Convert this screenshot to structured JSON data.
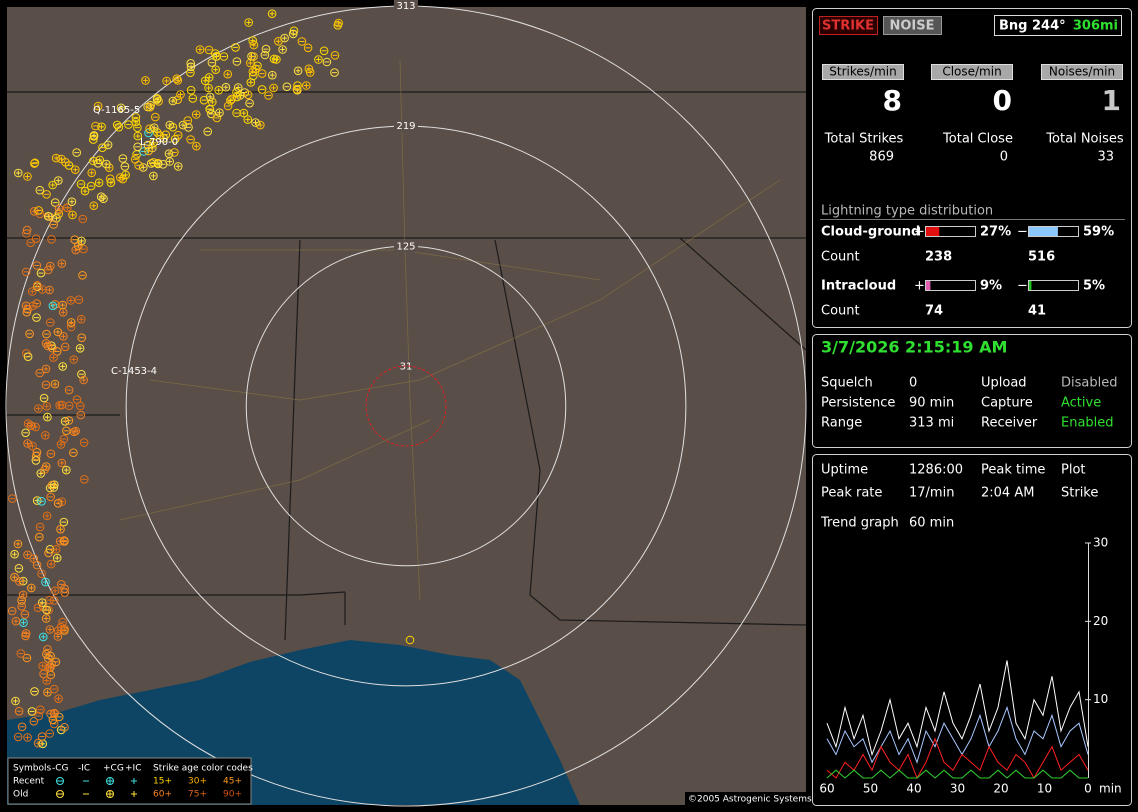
{
  "header": {
    "strike_button": "STRIKE",
    "noise_button": "NOISE",
    "bearing": "Bng 244°",
    "distance": "306mi"
  },
  "rates": [
    {
      "label": "Strikes/min",
      "value": "8"
    },
    {
      "label": "Close/min",
      "value": "0"
    },
    {
      "label": "Noises/min",
      "value": "1"
    }
  ],
  "totals": [
    {
      "label": "Total Strikes",
      "value": "869"
    },
    {
      "label": "Total Close",
      "value": "0"
    },
    {
      "label": "Total Noises",
      "value": "33"
    }
  ],
  "distribution": {
    "title": "Lightning type distribution",
    "rows": [
      {
        "label": "Cloud-ground",
        "plus_sign": "+",
        "plus": {
          "value": 27,
          "label": "27%"
        },
        "minus_sign": "−",
        "minus": {
          "value": 59,
          "label": "59%"
        },
        "count_label": "Count",
        "plus_count": "238",
        "minus_count": "516"
      },
      {
        "label": "Intracloud",
        "plus_sign": "+",
        "plus": {
          "value": 9,
          "label": "9%"
        },
        "minus_sign": "−",
        "minus": {
          "value": 5,
          "label": "5%"
        },
        "count_label": "Count",
        "plus_count": "74",
        "minus_count": "41"
      }
    ]
  },
  "status": {
    "datetime": "3/7/2026 2:15:19 AM",
    "rows": [
      [
        "Squelch",
        "0",
        "Upload",
        "Disabled"
      ],
      [
        "Persistence",
        "90 min",
        "Capture",
        "Active"
      ],
      [
        "Range",
        "313 mi",
        "Receiver",
        "Enabled"
      ]
    ]
  },
  "stats": {
    "rows": [
      [
        "Uptime",
        "1286:00",
        "Peak time",
        "Plot"
      ],
      [
        "Peak rate",
        "17/min",
        "2:04 AM",
        "Strike"
      ]
    ],
    "trend_label": "Trend graph",
    "trend_value": "60 min"
  },
  "trend_graph": {
    "xlim": [
      60,
      0
    ],
    "xticks": [
      60,
      50,
      40,
      30,
      20,
      10,
      0
    ],
    "x_label": "min",
    "ylim": [
      0,
      30
    ],
    "yticks": [
      30,
      20,
      10
    ],
    "series": [
      {
        "color": "#ffffff",
        "values": [
          7,
          4,
          9,
          5,
          8,
          3,
          6,
          10,
          5,
          7,
          4,
          9,
          6,
          11,
          7,
          5,
          8,
          12,
          6,
          9,
          15,
          7,
          5,
          10,
          8,
          13,
          6,
          9,
          11,
          4
        ]
      },
      {
        "color": "#a8c8ff",
        "values": [
          5,
          3,
          6,
          4,
          5,
          2,
          4,
          6,
          3,
          5,
          2,
          6,
          4,
          7,
          5,
          3,
          5,
          8,
          4,
          6,
          9,
          5,
          3,
          6,
          5,
          8,
          4,
          6,
          7,
          3
        ]
      },
      {
        "color": "#ff2020",
        "values": [
          1,
          0,
          2,
          1,
          3,
          1,
          4,
          2,
          1,
          3,
          0,
          2,
          5,
          2,
          1,
          3,
          2,
          1,
          4,
          2,
          1,
          3,
          2,
          0,
          2,
          4,
          1,
          2,
          3,
          1
        ]
      },
      {
        "color": "#30d030",
        "values": [
          0,
          1,
          0,
          1,
          0,
          0,
          1,
          0,
          1,
          0,
          0,
          1,
          0,
          1,
          0,
          0,
          1,
          0,
          0,
          1,
          0,
          1,
          0,
          0,
          1,
          0,
          0,
          1,
          0,
          0
        ]
      }
    ]
  },
  "map": {
    "ring_labels": [
      313,
      219,
      125,
      31
    ],
    "markers": [
      "Q-1165-5",
      "L-790-0",
      "C-1453-4"
    ],
    "copyright": "©2005 Astrogenic Systems",
    "legend": {
      "title": "Symbols",
      "symbols": [
        "-CG",
        "-IC",
        "+CG",
        "+IC"
      ],
      "age_title": "Strike age color codes",
      "rows": [
        {
          "label": "Recent",
          "ages": [
            "15+",
            "30+",
            "45+"
          ]
        },
        {
          "label": "Old",
          "ages": [
            "60+",
            "75+",
            "90+"
          ]
        }
      ]
    }
  }
}
